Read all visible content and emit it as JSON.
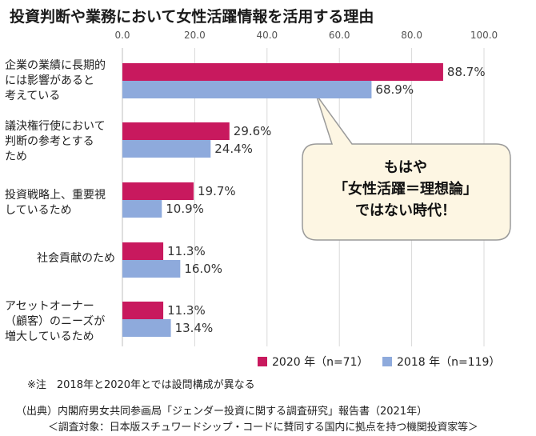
{
  "title": "投資判断や業務において女性活躍情報を活用する理由",
  "colors": {
    "series_2020": "#c8195e",
    "series_2018": "#8eaadc",
    "grid": "#d9d9d9",
    "callout_fill": "#fdf6e3",
    "callout_stroke": "#9a9a9a"
  },
  "callout": {
    "line1": "もはや",
    "line2": "「女性活躍＝理想論」",
    "line3": "ではない時代！"
  },
  "footnote": "※注　2018年と2020年とでは設問構成が異なる",
  "source_line1": "（出典）内閣府男女共同参画局「ジェンダー投資に関する調査研究」報告書（2021年）",
  "source_line2": "＜調査対象：日本版スチュワードシップ・コードに賛同する国内に拠点を持つ機関投資家等＞",
  "chart_data": {
    "type": "bar",
    "orientation": "horizontal",
    "categories": [
      "企業の業績に長期的\nには影響があると\n考えている",
      "議決権行使において\n判断の参考とする\nため",
      "投資戦略上、重要視\nしているため",
      "社会貢献のため",
      "アセットオーナー\n（顧客）のニーズが\n増大しているため"
    ],
    "series": [
      {
        "name": "2020 年（n=71）",
        "values": [
          88.7,
          29.6,
          19.7,
          11.3,
          11.3
        ],
        "value_labels": [
          "88.7%",
          "29.6%",
          "19.7%",
          "11.3%",
          "11.3%"
        ]
      },
      {
        "name": "2018 年（n=119）",
        "values": [
          68.9,
          24.4,
          10.9,
          16.0,
          13.4
        ],
        "value_labels": [
          "68.9%",
          "24.4%",
          "10.9%",
          "16.0%",
          "13.4%"
        ]
      }
    ],
    "xlim": [
      0,
      100
    ],
    "xticks": [
      0,
      20,
      40,
      60,
      80,
      100
    ],
    "xtick_labels": [
      "0.0",
      "20.0",
      "40.0",
      "60.0",
      "80.0",
      "100.0"
    ],
    "grid": true,
    "legend_position": "bottom"
  }
}
